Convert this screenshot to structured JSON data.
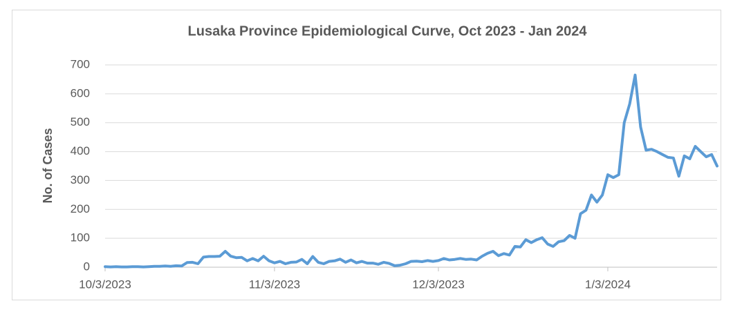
{
  "chart_data": {
    "type": "line",
    "title": "Lusaka Province Epidemiological Curve, Oct 2023 - Jan 2024",
    "y_label": "No. of Cases",
    "x": [
      "10/3/2023",
      "10/4/2023",
      "10/5/2023",
      "10/6/2023",
      "10/7/2023",
      "10/8/2023",
      "10/9/2023",
      "10/10/2023",
      "10/11/2023",
      "10/12/2023",
      "10/13/2023",
      "10/14/2023",
      "10/15/2023",
      "10/16/2023",
      "10/17/2023",
      "10/18/2023",
      "10/19/2023",
      "10/20/2023",
      "10/21/2023",
      "10/22/2023",
      "10/23/2023",
      "10/24/2023",
      "10/25/2023",
      "10/26/2023",
      "10/27/2023",
      "10/28/2023",
      "10/29/2023",
      "10/30/2023",
      "10/31/2023",
      "11/1/2023",
      "11/2/2023",
      "11/3/2023",
      "11/4/2023",
      "11/5/2023",
      "11/6/2023",
      "11/7/2023",
      "11/8/2023",
      "11/9/2023",
      "11/10/2023",
      "11/11/2023",
      "11/12/2023",
      "11/13/2023",
      "11/14/2023",
      "11/15/2023",
      "11/16/2023",
      "11/17/2023",
      "11/18/2023",
      "11/19/2023",
      "11/20/2023",
      "11/21/2023",
      "11/22/2023",
      "11/23/2023",
      "11/24/2023",
      "11/25/2023",
      "11/26/2023",
      "11/27/2023",
      "11/28/2023",
      "11/29/2023",
      "11/30/2023",
      "12/1/2023",
      "12/2/2023",
      "12/3/2023",
      "12/4/2023",
      "12/5/2023",
      "12/6/2023",
      "12/7/2023",
      "12/8/2023",
      "12/9/2023",
      "12/10/2023",
      "12/11/2023",
      "12/12/2023",
      "12/13/2023",
      "12/14/2023",
      "12/15/2023",
      "12/16/2023",
      "12/17/2023",
      "12/18/2023",
      "12/19/2023",
      "12/20/2023",
      "12/21/2023",
      "12/22/2023",
      "12/23/2023",
      "12/24/2023",
      "12/25/2023",
      "12/26/2023",
      "12/27/2023",
      "12/28/2023",
      "12/29/2023",
      "12/30/2023",
      "12/31/2023",
      "1/1/2024",
      "1/2/2024",
      "1/3/2024",
      "1/4/2024",
      "1/5/2024",
      "1/6/2024",
      "1/7/2024",
      "1/8/2024",
      "1/9/2024",
      "1/10/2024",
      "1/11/2024",
      "1/12/2024",
      "1/13/2024",
      "1/14/2024",
      "1/15/2024",
      "1/16/2024",
      "1/17/2024",
      "1/18/2024",
      "1/19/2024",
      "1/20/2024",
      "1/21/2024",
      "1/22/2024",
      "1/23/2024"
    ],
    "values": [
      2,
      1,
      2,
      1,
      1,
      2,
      2,
      1,
      2,
      3,
      3,
      4,
      3,
      5,
      4,
      16,
      17,
      12,
      35,
      37,
      37,
      38,
      55,
      38,
      33,
      34,
      22,
      30,
      22,
      38,
      22,
      15,
      20,
      12,
      17,
      18,
      27,
      12,
      37,
      17,
      12,
      20,
      22,
      28,
      17,
      25,
      15,
      20,
      14,
      14,
      10,
      17,
      13,
      5,
      7,
      12,
      20,
      21,
      19,
      23,
      20,
      23,
      30,
      25,
      27,
      30,
      27,
      28,
      25,
      38,
      48,
      55,
      40,
      47,
      42,
      72,
      70,
      95,
      85,
      95,
      102,
      80,
      72,
      88,
      92,
      110,
      100,
      185,
      197,
      250,
      225,
      250,
      320,
      310,
      320,
      500,
      565,
      665,
      485,
      405,
      408,
      400,
      390,
      380,
      378,
      315,
      385,
      375,
      418,
      400,
      382,
      390,
      350
    ],
    "color": "#5b9bd5",
    "xlim": [
      "10/3/2023",
      "1/23/2024"
    ],
    "xticks": [
      "10/3/2023",
      "11/3/2023",
      "12/3/2023",
      "1/3/2024"
    ],
    "ylim": [
      0,
      700
    ],
    "yticks": [
      0,
      100,
      200,
      300,
      400,
      500,
      600,
      700
    ],
    "grid": true
  }
}
